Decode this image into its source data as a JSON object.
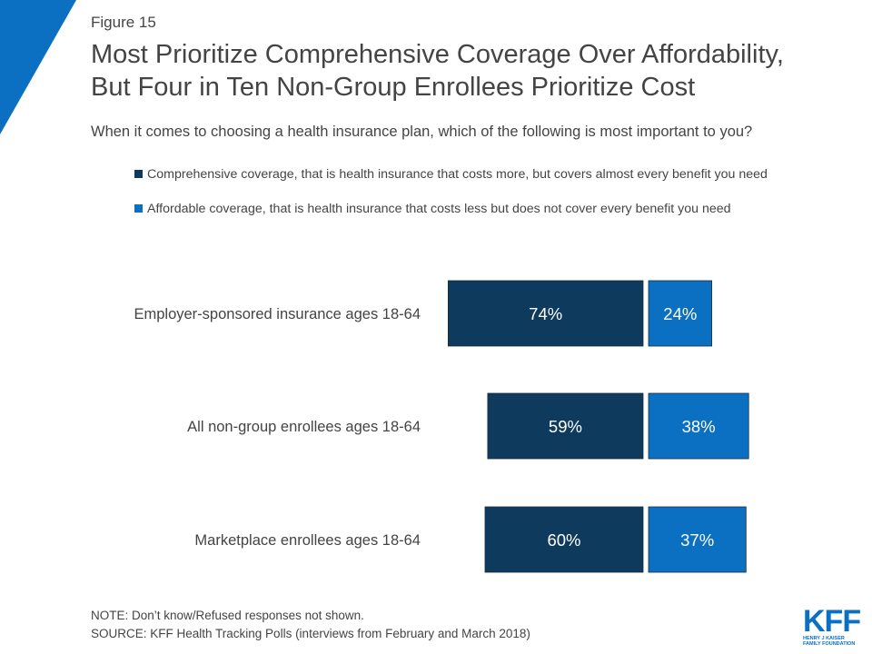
{
  "figure_label": "Figure 15",
  "title_line1": "Most Prioritize Comprehensive Coverage Over Affordability,",
  "title_line2": "But Four in Ten Non-Group Enrollees Prioritize Cost",
  "question": "When it comes to choosing a health insurance plan, which of the following is most important to you?",
  "note": "NOTE: Don’t know/Refused responses not shown.",
  "source": "SOURCE: KFF Health Tracking Polls (interviews from February and March 2018)",
  "logo": {
    "mark": "KFF",
    "line1": "HENRY J KAISER",
    "line2": "FAMILY FOUNDATION"
  },
  "colors": {
    "comprehensive": "#0e3a5d",
    "affordable": "#0b70c1",
    "corner": "#0b70c1"
  },
  "chart_data": {
    "type": "bar",
    "orientation": "horizontal-diverging",
    "categories": [
      "Employer-sponsored insurance ages 18-64",
      "All non-group enrollees ages 18-64",
      "Marketplace enrollees ages 18-64"
    ],
    "series": [
      {
        "name": "Comprehensive coverage, that is health insurance that costs more, but covers almost every benefit you need",
        "values": [
          74,
          59,
          60
        ],
        "color": "#0e3a5d"
      },
      {
        "name": "Affordable coverage, that is health insurance that costs less but does not cover every benefit you need",
        "values": [
          24,
          38,
          37
        ],
        "color": "#0b70c1"
      }
    ],
    "value_suffix": "%",
    "legend_position": "top"
  }
}
